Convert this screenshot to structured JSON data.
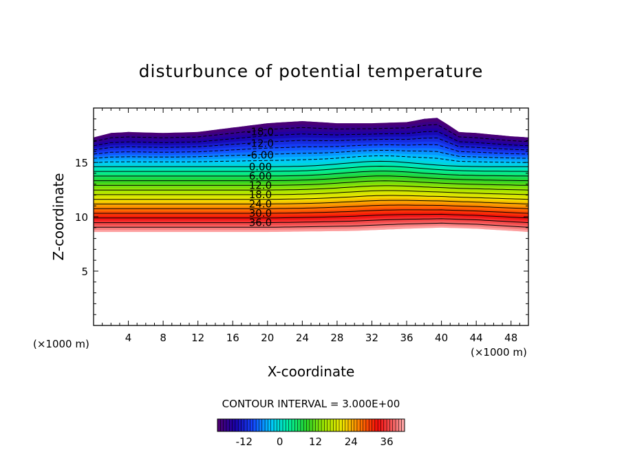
{
  "chart_data": {
    "type": "contour",
    "title": "disturbunce of potential temperature",
    "xlabel": "X-coordinate",
    "ylabel": "Z-coordinate",
    "x_unit": "(×1000 m)",
    "y_unit": "(×1000 m)",
    "xlim": [
      0,
      50
    ],
    "ylim": [
      0,
      20
    ],
    "x_ticks": [
      4,
      8,
      12,
      16,
      20,
      24,
      28,
      32,
      36,
      40,
      44,
      48
    ],
    "y_ticks": [
      5,
      10,
      15
    ],
    "contour_interval_label": "CONTOUR INTERVAL = 3.000E+00",
    "contour_interval": 3.0,
    "value_range": [
      -21,
      42
    ],
    "labeled_contours": [
      "-18.0",
      "-12.0",
      "-6.00",
      "0.00",
      "6.00",
      "12.0",
      "18.0",
      "24.0",
      "30.0",
      "36.0"
    ],
    "labeled_contour_levels": [
      -18,
      -12,
      -6,
      0,
      6,
      12,
      18,
      24,
      30,
      36
    ],
    "negative_contours": "dashed",
    "colorbar": {
      "ticks": [
        -12,
        0,
        12,
        24,
        36
      ],
      "tick_labels": [
        "-12",
        "0",
        "12",
        "24",
        "36"
      ],
      "range": [
        -21,
        42
      ]
    },
    "top_boundary_profile": {
      "x": [
        0,
        2,
        4,
        8,
        12,
        16,
        20,
        24,
        28,
        32,
        36,
        38,
        39.5,
        40.5,
        42,
        44,
        48,
        50
      ],
      "z": [
        17.3,
        17.7,
        17.8,
        17.7,
        17.8,
        18.2,
        18.6,
        18.8,
        18.6,
        18.6,
        18.7,
        19.0,
        19.1,
        18.6,
        17.8,
        17.7,
        17.4,
        17.3
      ]
    },
    "bottom_boundary_profile": {
      "x": [
        0,
        10,
        20,
        30,
        36,
        40,
        44,
        48,
        50
      ],
      "z": [
        8.6,
        8.6,
        8.6,
        8.7,
        8.9,
        9.0,
        8.9,
        8.7,
        8.6
      ]
    }
  }
}
